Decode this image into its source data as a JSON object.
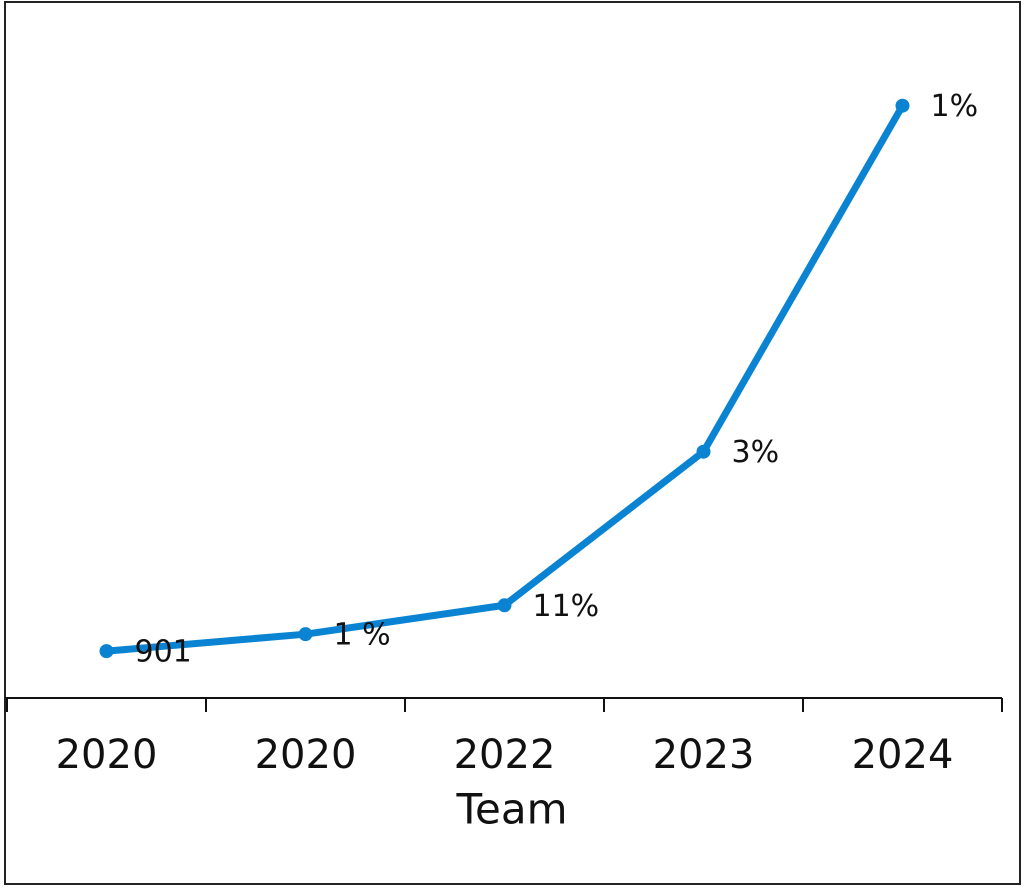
{
  "chart_data": {
    "type": "line",
    "x_label": "Team",
    "categories": [
      "2020",
      "2020",
      "2022",
      "2023",
      "2024"
    ],
    "series": [
      {
        "color": "#0a84d2",
        "values": [
          47,
          64,
          93,
          247,
          594
        ],
        "point_labels": [
          "901",
          "1 %",
          "11%",
          "3%",
          "1%"
        ]
      }
    ],
    "ylim": [
      0,
      700
    ]
  }
}
